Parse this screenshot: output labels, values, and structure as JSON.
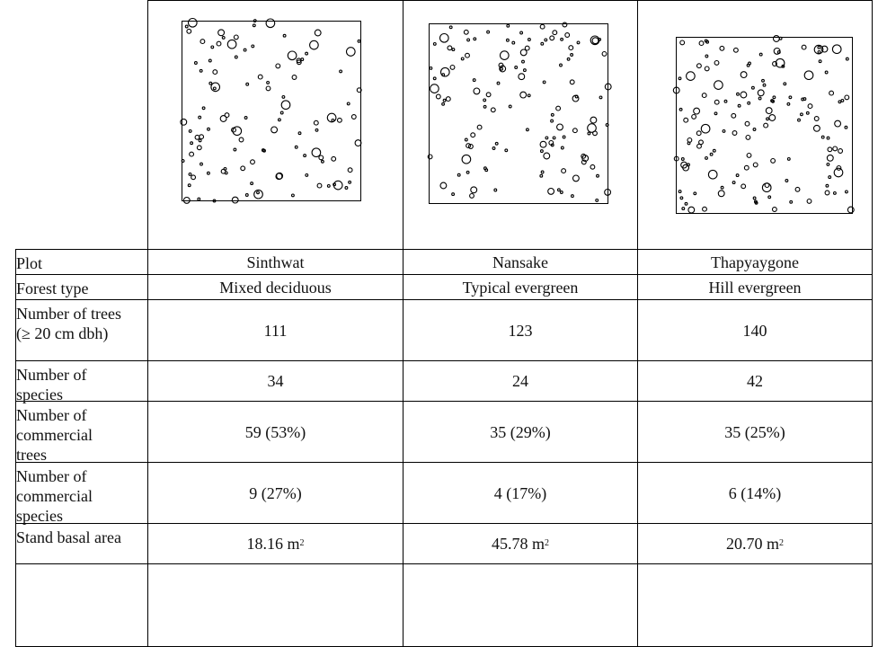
{
  "plots": [
    {
      "name": "Sinthwat"
    },
    {
      "name": "Nansake"
    },
    {
      "name": "Thapyaygone"
    }
  ],
  "rows": [
    {
      "label": "Plot",
      "values": [
        "Sinthwat",
        "Nansake",
        "Thapyaygone"
      ]
    },
    {
      "label": "Forest type",
      "values": [
        "Mixed deciduous",
        "Typical evergreen",
        "Hill evergreen"
      ]
    },
    {
      "label": "Number of trees (≥ 20 cm dbh)",
      "values": [
        "111",
        "123",
        "140"
      ]
    },
    {
      "label": "Number of species",
      "values": [
        "34",
        "24",
        "42"
      ]
    },
    {
      "label": "Number of commercial trees",
      "values": [
        "59 (53%)",
        "35 (29%)",
        "35 (25%)"
      ]
    },
    {
      "label": "Number of commercial species",
      "values": [
        "9 (27%)",
        "4 (17%)",
        "6 (14%)"
      ]
    },
    {
      "label": "Stand basal area",
      "values": [
        "18.16 m",
        "45.78 m",
        "20.70 m"
      ],
      "unit_sup": "2"
    }
  ]
}
